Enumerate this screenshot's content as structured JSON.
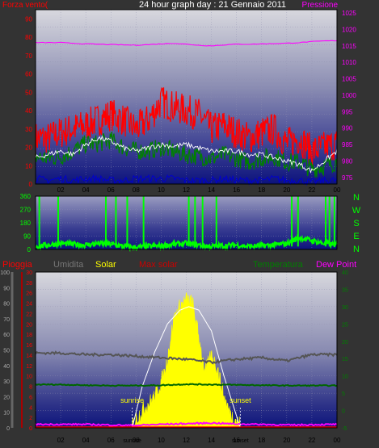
{
  "header": {
    "left": "Forza vento(",
    "title": "24 hour graph day : 21 Gennaio 2011",
    "right": "Pressione"
  },
  "legend": {
    "pioggia": "Pioggia",
    "umidita": "Umidita",
    "solar": "Solar",
    "max_solar": "Max solar",
    "temperatura": "Temperatura",
    "dew_point": "Dew Point"
  },
  "colors": {
    "background": "#333333",
    "wind": "#ff0000",
    "wind_avg": "#008000",
    "wind_base": "#0000cc",
    "pressure": "#ff00ff",
    "direction": "#00ff00",
    "temperature": "#006600",
    "humidity": "#555555",
    "solar": "#ffff00",
    "max_solar": "#ffffff",
    "dew_point": "#ff00ff",
    "rain": "#ff0000"
  },
  "time_ticks": [
    "02",
    "04",
    "06",
    "08",
    "10",
    "12",
    "14",
    "16",
    "18",
    "20",
    "22",
    "00"
  ],
  "chart_data": [
    {
      "id": "wind_pressure",
      "type": "line",
      "x_hours": [
        0,
        24
      ],
      "y_left_ticks": [
        "0",
        "10",
        "20",
        "30",
        "40",
        "50",
        "60",
        "70",
        "80",
        "90"
      ],
      "y_left_range": [
        0,
        95
      ],
      "y_right_ticks": [
        "975",
        "980",
        "985",
        "990",
        "995",
        "1000",
        "1005",
        "1010",
        "1015",
        "1020",
        "1025"
      ],
      "y_right_range": [
        973,
        1026
      ],
      "series": [
        {
          "key": "gust",
          "hours": [
            0,
            1,
            2,
            3,
            4,
            5,
            6,
            7,
            8,
            9,
            10,
            11,
            12,
            13,
            14,
            15,
            16,
            17,
            18,
            19,
            20,
            21,
            22,
            23,
            24
          ],
          "values": [
            25,
            25,
            28,
            30,
            32,
            35,
            38,
            35,
            30,
            35,
            45,
            42,
            40,
            38,
            30,
            32,
            28,
            25,
            28,
            30,
            22,
            25,
            18,
            20,
            22
          ]
        },
        {
          "key": "wind_avg",
          "hours": [
            0,
            1,
            2,
            3,
            4,
            5,
            6,
            7,
            8,
            9,
            10,
            11,
            12,
            13,
            14,
            15,
            16,
            17,
            18,
            19,
            20,
            21,
            22,
            23,
            24
          ],
          "values": [
            15,
            14,
            15,
            18,
            22,
            22,
            24,
            20,
            18,
            18,
            20,
            18,
            16,
            15,
            14,
            16,
            14,
            12,
            14,
            15,
            12,
            12,
            8,
            10,
            12
          ]
        },
        {
          "key": "wind_base",
          "hours": [
            0,
            1,
            2,
            3,
            4,
            5,
            6,
            7,
            8,
            9,
            10,
            11,
            12,
            13,
            14,
            15,
            16,
            17,
            18,
            19,
            20,
            21,
            22,
            23,
            24
          ],
          "values": [
            3,
            2,
            3,
            2,
            3,
            3,
            2,
            2,
            3,
            3,
            3,
            3,
            2,
            2,
            2,
            3,
            2,
            2,
            2,
            3,
            2,
            2,
            1,
            2,
            2
          ]
        },
        {
          "key": "pressure",
          "hours": [
            0,
            1,
            2,
            3,
            4,
            5,
            6,
            7,
            8,
            9,
            10,
            11,
            12,
            13,
            14,
            15,
            16,
            17,
            18,
            19,
            20,
            21,
            22,
            23,
            24
          ],
          "values": [
            1016,
            1016,
            1016,
            1015.8,
            1015.6,
            1015.5,
            1015.4,
            1015.3,
            1015.2,
            1015.4,
            1015.6,
            1015.8,
            1015.5,
            1015.2,
            1015,
            1015.3,
            1015.5,
            1015.5,
            1015.6,
            1015.7,
            1015.8,
            1016,
            1016.3,
            1016.5,
            1016.6
          ]
        },
        {
          "key": "temp_trace",
          "hours": [
            0,
            1,
            2,
            3,
            4,
            5,
            6,
            7,
            8,
            9,
            10,
            11,
            12,
            13,
            14,
            15,
            16,
            17,
            18,
            19,
            20,
            21,
            22,
            23,
            24
          ],
          "values": [
            981,
            982,
            983,
            982,
            985,
            987,
            986,
            984,
            983,
            984,
            985,
            984.5,
            985,
            984,
            983,
            983,
            983,
            982,
            982,
            981,
            980,
            979,
            977,
            980,
            983
          ]
        }
      ]
    },
    {
      "id": "wind_direction",
      "type": "line",
      "y_left_ticks": [
        "0",
        "90",
        "180",
        "270",
        "360"
      ],
      "y_left_range": [
        0,
        360
      ],
      "right_labels": [
        "N",
        "W",
        "S",
        "E",
        "N"
      ],
      "series": [
        {
          "key": "direction",
          "hours": [
            0,
            1,
            2,
            3,
            4,
            5,
            6,
            7,
            8,
            9,
            10,
            11,
            12,
            13,
            14,
            15,
            16,
            17,
            18,
            19,
            20,
            21,
            22,
            23,
            24
          ],
          "values": [
            20,
            30,
            40,
            35,
            30,
            40,
            35,
            20,
            15,
            20,
            25,
            35,
            40,
            30,
            20,
            25,
            30,
            20,
            25,
            30,
            40,
            80,
            60,
            40,
            30
          ]
        }
      ],
      "spikes_hours": [
        0.3,
        1.8,
        5.6,
        6.4,
        7.3,
        8.6,
        12.2,
        12.7,
        13.3,
        14.4,
        20.4,
        20.9,
        23.1,
        23.4,
        23.8
      ]
    },
    {
      "id": "temp_solar",
      "type": "area",
      "y_left_outer_ticks": [
        "0",
        "10",
        "20",
        "30",
        "40",
        "50",
        "60",
        "70",
        "80",
        "90",
        "100"
      ],
      "y_left_inner_ticks": [
        "0",
        "2",
        "4",
        "6",
        "8",
        "10",
        "12",
        "14",
        "16",
        "18",
        "20",
        "22",
        "24",
        "26",
        "28",
        "30"
      ],
      "y_right_ticks": [
        "-5",
        "0",
        "5",
        "10",
        "15",
        "20",
        "25",
        "30",
        "35",
        "40"
      ],
      "y_left_outer_range": [
        0,
        100
      ],
      "y_right_range": [
        -5,
        40
      ],
      "annotations": {
        "sunrise": "sunrise",
        "sunset": "sunset",
        "sunrise_hour": 7.7,
        "sunset_hour": 16.3
      },
      "series": [
        {
          "key": "humidity",
          "hours": [
            0,
            2,
            4,
            6,
            8,
            10,
            12,
            14,
            16,
            18,
            20,
            22,
            24
          ],
          "values": [
            48,
            48,
            47,
            47,
            46,
            45,
            44,
            42,
            44,
            45,
            43,
            47,
            47
          ]
        },
        {
          "key": "temperature",
          "hours": [
            0,
            2,
            4,
            6,
            8,
            10,
            12,
            14,
            16,
            18,
            20,
            22,
            24
          ],
          "values": [
            7.5,
            7.5,
            7.3,
            7.2,
            7.2,
            7.3,
            7.6,
            7.5,
            7.4,
            7.3,
            7.2,
            7.2,
            7.2
          ]
        },
        {
          "key": "solar",
          "hours": [
            7.7,
            8.5,
            9.5,
            10.3,
            11,
            11.5,
            12,
            12.5,
            13,
            13.5,
            14,
            14.5,
            15,
            15.5,
            16.3
          ],
          "values": [
            0,
            4,
            8,
            15,
            30,
            34,
            36,
            35,
            25,
            15,
            20,
            16,
            8,
            3,
            0
          ]
        },
        {
          "key": "max_solar",
          "hours": [
            7.7,
            8.5,
            9.5,
            10.5,
            11.5,
            12.2,
            13,
            14,
            15,
            16.3
          ],
          "values": [
            0,
            12,
            22,
            30,
            34,
            35,
            34,
            28,
            15,
            0
          ]
        },
        {
          "key": "dew_point",
          "hours": [
            0,
            2,
            4,
            6,
            8,
            10,
            12,
            14,
            16,
            18,
            20,
            22,
            24
          ],
          "values": [
            -4,
            -4,
            -4,
            -4.2,
            -4.3,
            -4,
            -3.8,
            -3.6,
            -3.9,
            -4,
            -4.2,
            -4.1,
            -4
          ]
        }
      ]
    }
  ]
}
